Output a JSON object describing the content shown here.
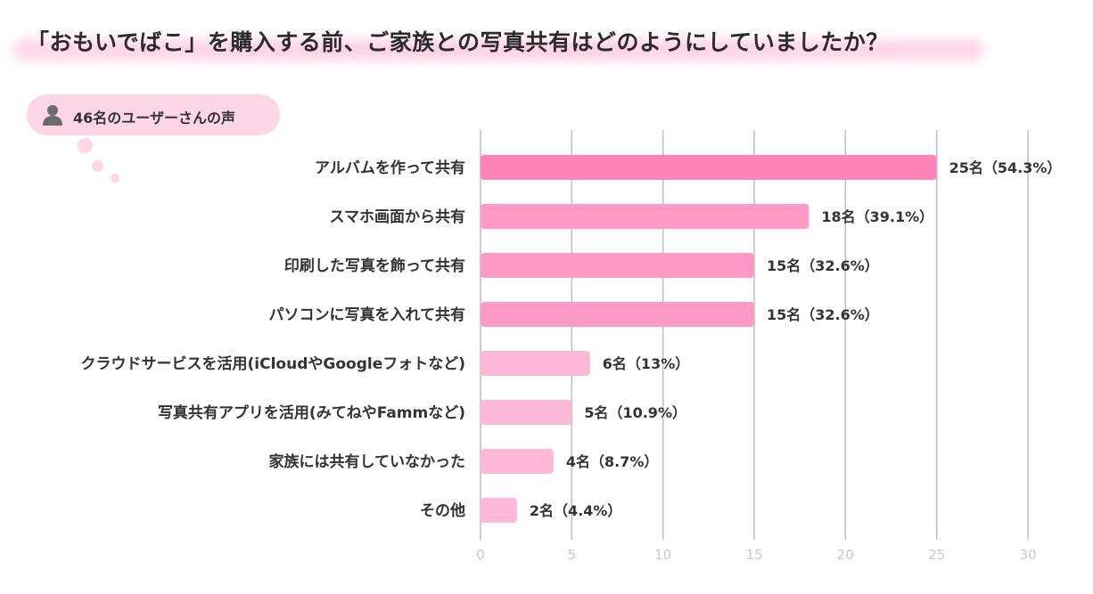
{
  "title": "「おもいでばこ」を購入する前、ご家族との写真共有はどのようにしていましたか？",
  "respondents_label": "46名のユーザーさんの声",
  "colors": {
    "bar_dark": "#ff82b9",
    "bar_mid": "#ff99c6",
    "bar_light": "#ffb8d8",
    "grid": "#bdbdbd",
    "tick": "#c8c8c8",
    "bubble": "#fdd6e6"
  },
  "chart_data": {
    "type": "bar",
    "orientation": "horizontal",
    "categories": [
      "アルバムを作って共有",
      "スマホ画面から共有",
      "印刷した写真を飾って共有",
      "パソコンに写真を入れて共有",
      "クラウドサービスを活用(iCloudやGoogleフォトなど)",
      "写真共有アプリを活用(みてねやFammなど)",
      "家族には共有していなかった",
      "その他"
    ],
    "values": [
      25,
      18,
      15,
      15,
      6,
      5,
      4,
      2
    ],
    "value_labels": [
      "25名（54.3%）",
      "18名（39.1%）",
      "15名（32.6%）",
      "15名（32.6%）",
      "6名（13%）",
      "5名（10.9%）",
      "4名（8.7%）",
      "2名（4.4%）"
    ],
    "xlim": [
      0,
      30
    ],
    "xticks": [
      0,
      5,
      10,
      15,
      20,
      25,
      30
    ],
    "grid": true
  }
}
